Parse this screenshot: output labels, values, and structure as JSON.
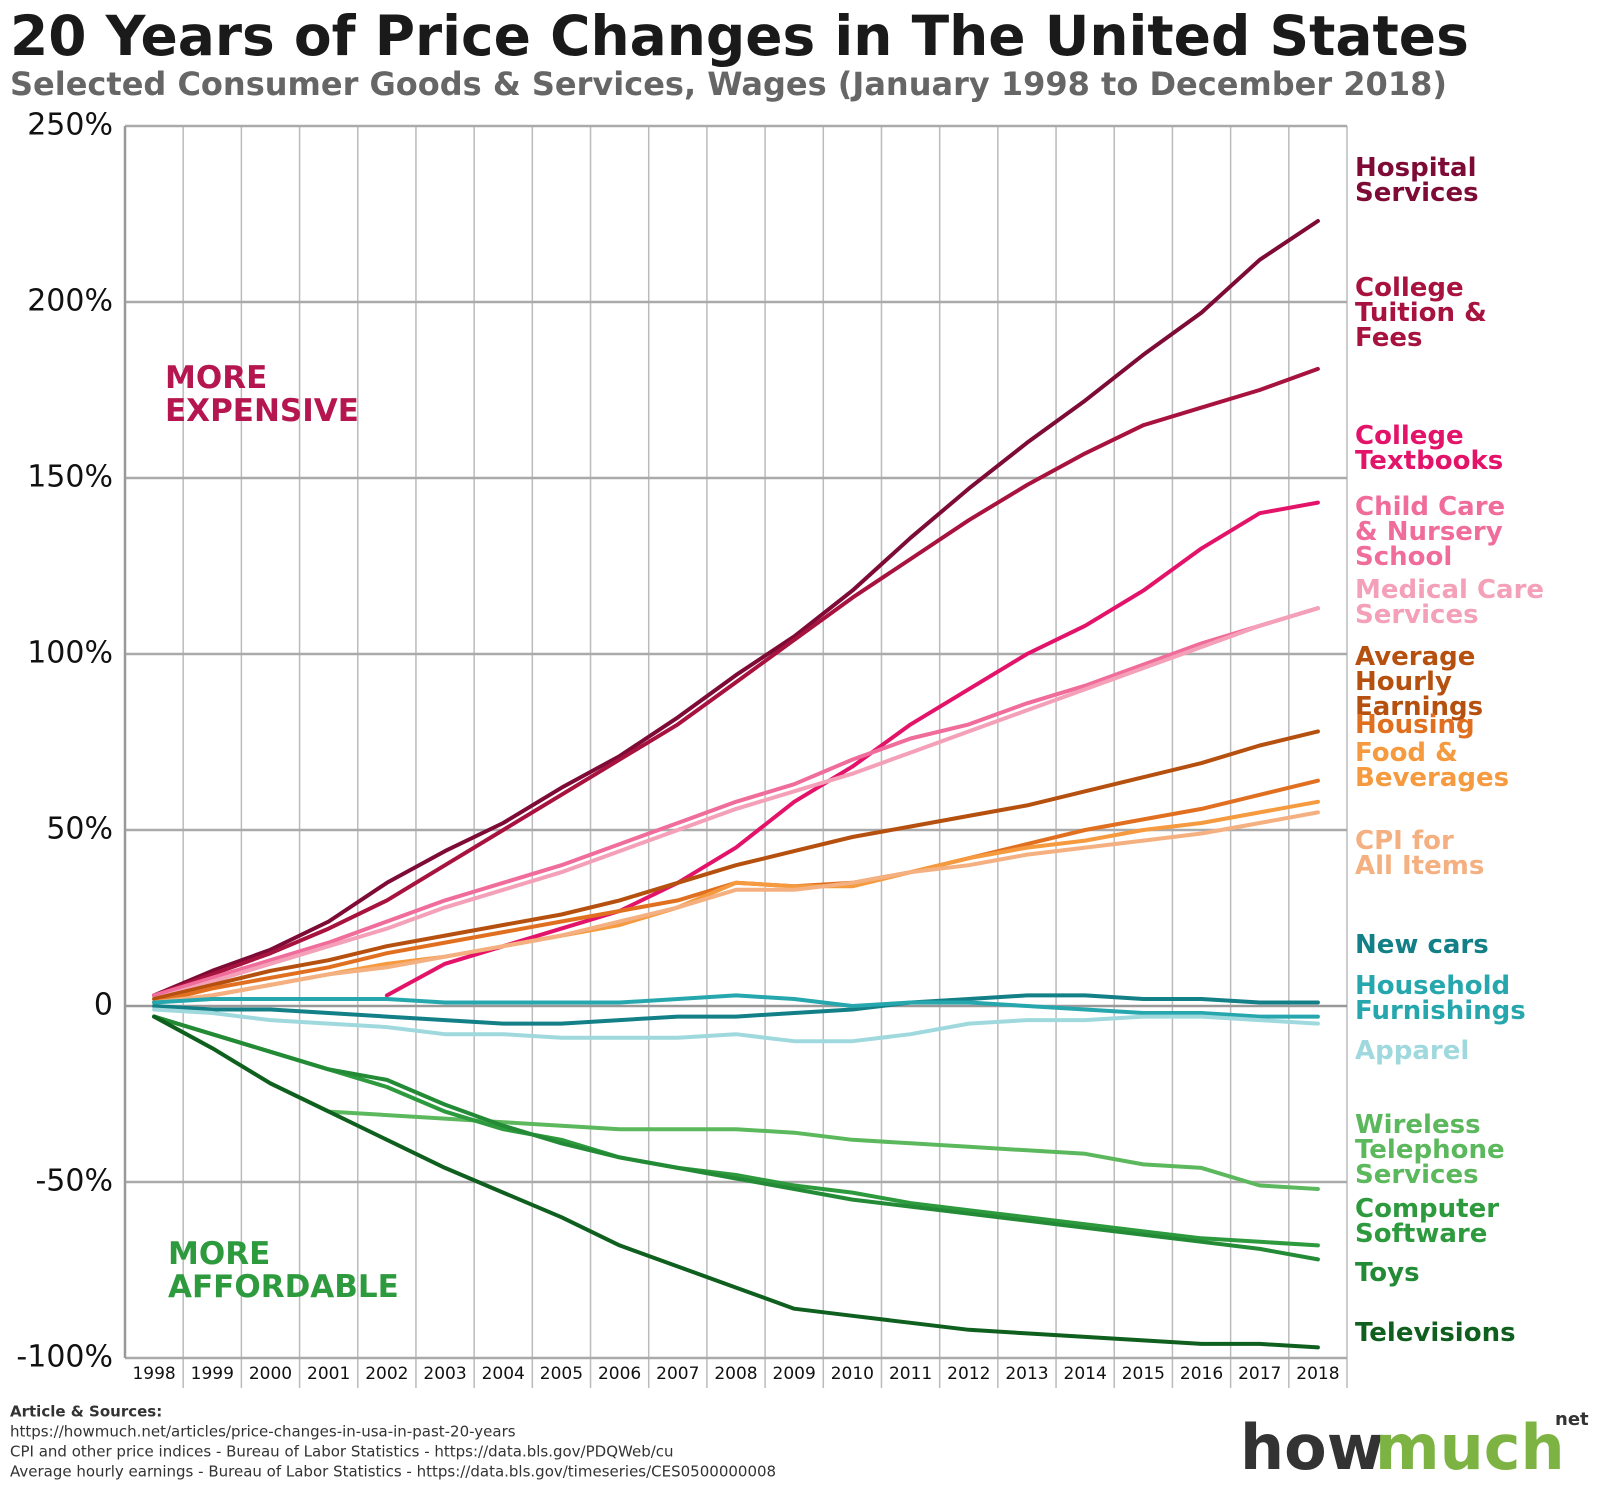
{
  "chart_data": {
    "type": "line",
    "title": "20 Years of Price Changes in The United States",
    "subtitle": "Selected Consumer Goods & Services, Wages (January 1998 to December 2018)",
    "categories": [
      "1998",
      "1999",
      "2000",
      "2001",
      "2002",
      "2003",
      "2004",
      "2005",
      "2006",
      "2007",
      "2008",
      "2009",
      "2010",
      "2011",
      "2012",
      "2013",
      "2014",
      "2015",
      "2016",
      "2017",
      "2018"
    ],
    "ylim": [
      -100,
      250
    ],
    "yticks": [
      {
        "value": -100,
        "label": "-100%"
      },
      {
        "value": -50,
        "label": "-50%"
      },
      0,
      {
        "value": 50,
        "label": "50%"
      },
      {
        "value": 100,
        "label": "100%"
      },
      {
        "value": 150,
        "label": "150%"
      },
      {
        "value": 200,
        "label": "200%"
      },
      {
        "value": 250,
        "label": "250%"
      }
    ],
    "grid": true,
    "series": [
      {
        "name": "Hospital Services",
        "color": "#7d0b36",
        "values": [
          3,
          10,
          16,
          24,
          35,
          44,
          52,
          62,
          71,
          82,
          94,
          105,
          118,
          133,
          147,
          160,
          172,
          185,
          197,
          212,
          223
        ]
      },
      {
        "name": "College Tuition & Fees",
        "color": "#a8123f",
        "values": [
          3,
          9,
          15,
          22,
          30,
          40,
          50,
          60,
          70,
          80,
          92,
          104,
          116,
          127,
          138,
          148,
          157,
          165,
          170,
          175,
          181
        ]
      },
      {
        "name": "College Textbooks",
        "color": "#e4136a",
        "values": [
          null,
          null,
          null,
          null,
          3,
          12,
          17,
          22,
          27,
          35,
          45,
          58,
          68,
          80,
          90,
          100,
          108,
          118,
          130,
          140,
          143
        ]
      },
      {
        "name": "Child Care & Nursery School",
        "color": "#f06c9b",
        "values": [
          3,
          8,
          13,
          18,
          24,
          30,
          35,
          40,
          46,
          52,
          58,
          63,
          70,
          76,
          80,
          86,
          91,
          97,
          103,
          108,
          113
        ]
      },
      {
        "name": "Medical Care Services",
        "color": "#f4a0b8",
        "values": [
          2,
          7,
          12,
          17,
          22,
          28,
          33,
          38,
          44,
          50,
          56,
          61,
          66,
          72,
          78,
          84,
          90,
          96,
          102,
          108,
          113
        ]
      },
      {
        "name": "Average Hourly Earnings",
        "color": "#b5500f",
        "values": [
          2,
          6,
          10,
          13,
          17,
          20,
          23,
          26,
          30,
          35,
          40,
          44,
          48,
          51,
          54,
          57,
          61,
          65,
          69,
          74,
          78
        ]
      },
      {
        "name": "Housing",
        "color": "#e07020",
        "values": [
          1,
          5,
          8,
          11,
          15,
          18,
          21,
          24,
          27,
          30,
          35,
          34,
          35,
          38,
          42,
          46,
          50,
          53,
          56,
          60,
          64
        ]
      },
      {
        "name": "Food & Beverages",
        "color": "#f59a3e",
        "values": [
          1,
          3,
          6,
          9,
          12,
          14,
          17,
          20,
          23,
          28,
          35,
          34,
          34,
          38,
          42,
          45,
          47,
          50,
          52,
          55,
          58
        ]
      },
      {
        "name": "CPI for All Items",
        "color": "#f4b080",
        "values": [
          1,
          3,
          6,
          9,
          11,
          14,
          17,
          20,
          24,
          28,
          33,
          33,
          35,
          38,
          40,
          43,
          45,
          47,
          49,
          52,
          55
        ]
      },
      {
        "name": "New cars",
        "color": "#137f86",
        "values": [
          0,
          -1,
          -1,
          -2,
          -3,
          -4,
          -5,
          -5,
          -4,
          -3,
          -3,
          -2,
          -1,
          1,
          2,
          3,
          3,
          2,
          2,
          1,
          1
        ]
      },
      {
        "name": "Household Furnishings",
        "color": "#26a7ad",
        "values": [
          1,
          2,
          2,
          2,
          2,
          1,
          1,
          1,
          1,
          2,
          3,
          2,
          0,
          1,
          1,
          0,
          -1,
          -2,
          -2,
          -3,
          -3
        ]
      },
      {
        "name": "Apparel",
        "color": "#9fd9de",
        "values": [
          -1,
          -2,
          -4,
          -5,
          -6,
          -8,
          -8,
          -9,
          -9,
          -9,
          -8,
          -10,
          -10,
          -8,
          -5,
          -4,
          -4,
          -3,
          -3,
          -4,
          -5
        ]
      },
      {
        "name": "Wireless Telephone Services",
        "color": "#5cb85c",
        "values": [
          -3,
          -12,
          -22,
          -30,
          -31,
          -32,
          -33,
          -34,
          -35,
          -35,
          -35,
          -36,
          -38,
          -39,
          -40,
          -41,
          -42,
          -45,
          -46,
          -51,
          -52
        ]
      },
      {
        "name": "Computer Software",
        "color": "#2e9a3e",
        "values": [
          -3,
          -8,
          -13,
          -18,
          -23,
          -30,
          -35,
          -38,
          -43,
          -46,
          -48,
          -51,
          -53,
          -56,
          -58,
          -60,
          -62,
          -64,
          -66,
          -67,
          -68
        ]
      },
      {
        "name": "Toys",
        "color": "#238a36",
        "values": [
          -3,
          -8,
          -13,
          -18,
          -21,
          -28,
          -34,
          -39,
          -43,
          -46,
          -49,
          -52,
          -55,
          -57,
          -59,
          -61,
          -63,
          -65,
          -67,
          -69,
          -72
        ]
      },
      {
        "name": "Televisions",
        "color": "#0f5f1f",
        "values": [
          -3,
          -12,
          -22,
          -30,
          -38,
          -46,
          -53,
          -60,
          -68,
          -74,
          -80,
          -86,
          -88,
          -90,
          -92,
          -93,
          -94,
          -95,
          -96,
          -96,
          -97
        ]
      }
    ],
    "annotations": [
      "MORE EXPENSIVE",
      "MORE AFFORDABLE"
    ]
  },
  "footer": {
    "heading": "Article & Sources:",
    "lines": [
      "https://howmuch.net/articles/price-changes-in-usa-in-past-20-years",
      "CPI and other price indices - Bureau of Labor Statistics - https://data.bls.gov/PDQWeb/cu",
      "Average hourly earnings - Bureau of Labor Statistics - https://data.bls.gov/timeseries/CES0500000008"
    ]
  },
  "logo": {
    "how": "how",
    "much": "much",
    "net": "net"
  }
}
